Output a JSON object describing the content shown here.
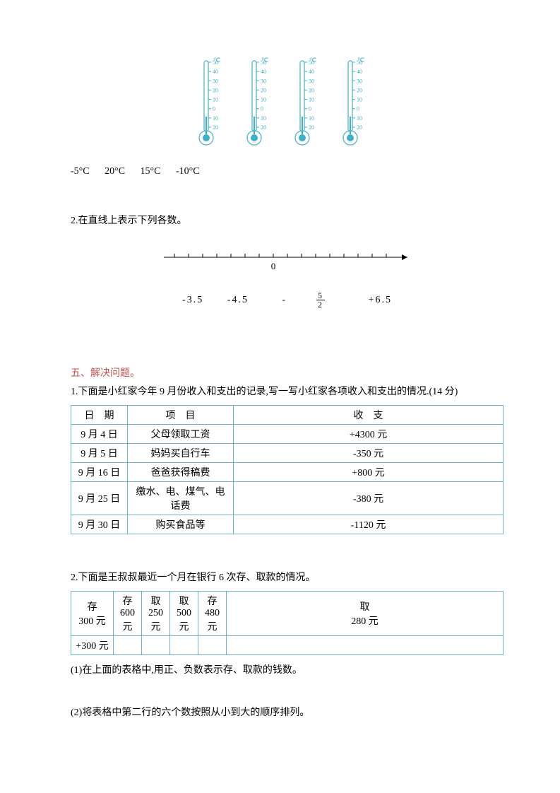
{
  "thermometers": {
    "scale_labels": [
      "50",
      "40",
      "30",
      "20",
      "10",
      "0",
      "10",
      "20"
    ],
    "unit": "℃",
    "tube_color": "#3fb0c9",
    "temps": [
      "-5°C",
      "20°C",
      "15°C",
      "-10°C"
    ]
  },
  "q2": {
    "text": "2.在直线上表示下列各数。",
    "zero_label": "0",
    "numbers": [
      "-3.5",
      "-4.5",
      "",
      "+6.5"
    ],
    "frac_sign": "-",
    "frac_num": "5",
    "frac_den": "2"
  },
  "section5": {
    "title": "五、解决问题。",
    "p1_text": "1.下面是小红家今年 9 月份收入和支出的记录,写一写小红家各项收入和支出的情况.(14 分)",
    "table1": {
      "headers": [
        "日　期",
        "项　目",
        "收　支"
      ],
      "rows": [
        [
          "9 月 4 日",
          "父母领取工资",
          "+4300 元"
        ],
        [
          "9 月 5 日",
          "妈妈买自行车",
          "-350 元"
        ],
        [
          "9 月 16 日",
          "爸爸获得稿费",
          "+800 元"
        ],
        [
          "9 月 25 日",
          "缴水、电、煤气、电话费",
          "-380 元"
        ],
        [
          "9 月 30 日",
          "购买食品等",
          "-1120 元"
        ]
      ]
    },
    "p2_text": "2.下面是王叔叔最近一个月在银行 6 次存、取款的情况。",
    "table2": {
      "row1": [
        "存\n300 元",
        "存\n600\n元",
        "取\n250\n元",
        "取\n500\n元",
        "存\n480\n元",
        "取\n280 元"
      ],
      "row2": [
        "+300 元",
        "",
        "",
        "",
        "",
        ""
      ]
    },
    "sub1": "(1)在上面的表格中,用正、负数表示存、取款的钱数。",
    "sub2": "(2)将表格中第二行的六个数按照从小到大的顺序排列。"
  }
}
